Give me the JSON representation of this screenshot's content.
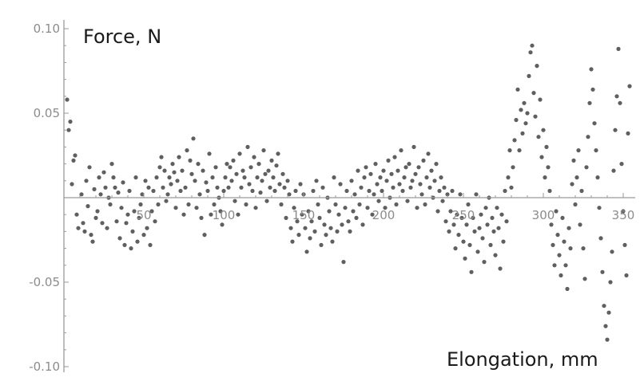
{
  "chart_data": {
    "type": "scatter",
    "title": "",
    "ylabel": "Force, N",
    "xlabel": "Elongation, mm",
    "xlim": [
      0,
      355
    ],
    "ylim": [
      -0.1,
      0.1
    ],
    "xticks": [
      50,
      100,
      150,
      200,
      250,
      300,
      350
    ],
    "xtick_labels": [
      "50",
      "100",
      "150",
      "200",
      "250",
      "300",
      "350"
    ],
    "yticks": [
      -0.1,
      -0.05,
      0.05,
      0.1
    ],
    "ytick_labels": [
      "-0.10",
      "-0.05",
      "0.05",
      "0.10"
    ],
    "grid": false,
    "point_color": "#5f5f5f",
    "points": [
      [
        2,
        0.058
      ],
      [
        3,
        0.04
      ],
      [
        4,
        0.045
      ],
      [
        5,
        0.008
      ],
      [
        6,
        0.022
      ],
      [
        7,
        0.025
      ],
      [
        8,
        -0.01
      ],
      [
        9,
        -0.018
      ],
      [
        11,
        0.002
      ],
      [
        12,
        -0.015
      ],
      [
        13,
        -0.02
      ],
      [
        14,
        0.01
      ],
      [
        15,
        -0.005
      ],
      [
        16,
        0.018
      ],
      [
        17,
        -0.022
      ],
      [
        18,
        -0.026
      ],
      [
        19,
        0.005
      ],
      [
        20,
        -0.012
      ],
      [
        21,
        -0.008
      ],
      [
        22,
        0.012
      ],
      [
        23,
        0.002
      ],
      [
        24,
        -0.015
      ],
      [
        25,
        0.015
      ],
      [
        26,
        0.006
      ],
      [
        27,
        -0.018
      ],
      [
        28,
        0.0
      ],
      [
        29,
        -0.004
      ],
      [
        30,
        0.02
      ],
      [
        31,
        0.012
      ],
      [
        32,
        0.006
      ],
      [
        33,
        -0.014
      ],
      [
        34,
        0.003
      ],
      [
        35,
        -0.024
      ],
      [
        36,
        -0.006
      ],
      [
        37,
        0.009
      ],
      [
        38,
        -0.028
      ],
      [
        39,
        -0.015
      ],
      [
        40,
        -0.01
      ],
      [
        41,
        0.004
      ],
      [
        42,
        -0.03
      ],
      [
        43,
        -0.02
      ],
      [
        44,
        -0.008
      ],
      [
        45,
        0.012
      ],
      [
        46,
        -0.026
      ],
      [
        47,
        -0.012
      ],
      [
        48,
        -0.004
      ],
      [
        49,
        0.002
      ],
      [
        50,
        -0.022
      ],
      [
        51,
        0.01
      ],
      [
        52,
        -0.018
      ],
      [
        53,
        0.006
      ],
      [
        54,
        -0.028
      ],
      [
        55,
        -0.008
      ],
      [
        56,
        0.004
      ],
      [
        57,
        -0.014
      ],
      [
        58,
        0.012
      ],
      [
        59,
        -0.004
      ],
      [
        60,
        0.018
      ],
      [
        61,
        0.024
      ],
      [
        62,
        0.006
      ],
      [
        63,
        0.016
      ],
      [
        64,
        -0.002
      ],
      [
        65,
        0.002
      ],
      [
        66,
        0.012
      ],
      [
        67,
        0.008
      ],
      [
        68,
        0.02
      ],
      [
        69,
        0.015
      ],
      [
        70,
        -0.006
      ],
      [
        71,
        0.01
      ],
      [
        72,
        0.024
      ],
      [
        73,
        0.004
      ],
      [
        74,
        0.016
      ],
      [
        75,
        -0.01
      ],
      [
        76,
        0.006
      ],
      [
        77,
        0.028
      ],
      [
        78,
        -0.004
      ],
      [
        79,
        0.022
      ],
      [
        80,
        0.014
      ],
      [
        81,
        0.035
      ],
      [
        82,
        0.01
      ],
      [
        83,
        -0.006
      ],
      [
        84,
        0.02
      ],
      [
        85,
        0.002
      ],
      [
        86,
        -0.012
      ],
      [
        87,
        0.016
      ],
      [
        88,
        -0.022
      ],
      [
        89,
        0.009
      ],
      [
        90,
        0.004
      ],
      [
        91,
        0.026
      ],
      [
        92,
        -0.01
      ],
      [
        93,
        0.012
      ],
      [
        94,
        -0.004
      ],
      [
        95,
        0.018
      ],
      [
        96,
        0.006
      ],
      [
        97,
        0.0
      ],
      [
        98,
        -0.008
      ],
      [
        99,
        -0.016
      ],
      [
        100,
        0.004
      ],
      [
        101,
        0.012
      ],
      [
        102,
        0.02
      ],
      [
        103,
        0.006
      ],
      [
        104,
        0.018
      ],
      [
        105,
        0.01
      ],
      [
        106,
        0.022
      ],
      [
        107,
        -0.002
      ],
      [
        108,
        0.014
      ],
      [
        109,
        -0.01
      ],
      [
        110,
        0.026
      ],
      [
        111,
        0.006
      ],
      [
        112,
        0.016
      ],
      [
        113,
        0.012
      ],
      [
        114,
        -0.004
      ],
      [
        115,
        0.03
      ],
      [
        116,
        0.008
      ],
      [
        117,
        0.018
      ],
      [
        118,
        0.004
      ],
      [
        119,
        0.024
      ],
      [
        120,
        -0.006
      ],
      [
        121,
        0.012
      ],
      [
        122,
        0.02
      ],
      [
        123,
        0.003
      ],
      [
        124,
        0.01
      ],
      [
        125,
        0.028
      ],
      [
        126,
        0.014
      ],
      [
        127,
        -0.002
      ],
      [
        128,
        0.016
      ],
      [
        129,
        0.006
      ],
      [
        130,
        0.022
      ],
      [
        131,
        0.012
      ],
      [
        132,
        0.004
      ],
      [
        133,
        0.019
      ],
      [
        134,
        0.026
      ],
      [
        135,
        0.008
      ],
      [
        136,
        -0.004
      ],
      [
        137,
        0.014
      ],
      [
        138,
        0.006
      ],
      [
        139,
        -0.012
      ],
      [
        140,
        0.01
      ],
      [
        141,
        0.002
      ],
      [
        142,
        -0.018
      ],
      [
        143,
        -0.026
      ],
      [
        144,
        -0.006
      ],
      [
        145,
        0.004
      ],
      [
        146,
        -0.014
      ],
      [
        147,
        -0.022
      ],
      [
        148,
        0.008
      ],
      [
        149,
        -0.01
      ],
      [
        150,
        0.002
      ],
      [
        151,
        -0.018
      ],
      [
        152,
        -0.032
      ],
      [
        153,
        -0.008
      ],
      [
        154,
        -0.024
      ],
      [
        155,
        -0.014
      ],
      [
        156,
        0.004
      ],
      [
        157,
        -0.02
      ],
      [
        158,
        0.01
      ],
      [
        159,
        -0.004
      ],
      [
        160,
        -0.012
      ],
      [
        161,
        -0.028
      ],
      [
        162,
        0.006
      ],
      [
        163,
        -0.016
      ],
      [
        164,
        -0.022
      ],
      [
        165,
        0.0
      ],
      [
        166,
        -0.008
      ],
      [
        167,
        -0.018
      ],
      [
        168,
        -0.026
      ],
      [
        169,
        0.012
      ],
      [
        170,
        -0.004
      ],
      [
        171,
        -0.02
      ],
      [
        172,
        -0.01
      ],
      [
        173,
        0.008
      ],
      [
        174,
        -0.016
      ],
      [
        175,
        -0.038
      ],
      [
        176,
        -0.006
      ],
      [
        177,
        0.004
      ],
      [
        178,
        -0.014
      ],
      [
        179,
        -0.02
      ],
      [
        180,
        0.01
      ],
      [
        181,
        -0.008
      ],
      [
        182,
        0.002
      ],
      [
        183,
        -0.012
      ],
      [
        184,
        0.016
      ],
      [
        185,
        -0.004
      ],
      [
        186,
        0.006
      ],
      [
        187,
        -0.016
      ],
      [
        188,
        0.012
      ],
      [
        189,
        0.018
      ],
      [
        190,
        -0.006
      ],
      [
        191,
        0.004
      ],
      [
        192,
        0.014
      ],
      [
        193,
        -0.01
      ],
      [
        194,
        0.002
      ],
      [
        195,
        0.02
      ],
      [
        196,
        0.008
      ],
      [
        197,
        -0.002
      ],
      [
        198,
        0.012
      ],
      [
        199,
        0.004
      ],
      [
        200,
        0.016
      ],
      [
        201,
        -0.006
      ],
      [
        202,
        0.01
      ],
      [
        203,
        0.022
      ],
      [
        204,
        0.0
      ],
      [
        205,
        0.014
      ],
      [
        206,
        0.006
      ],
      [
        207,
        0.024
      ],
      [
        208,
        -0.004
      ],
      [
        209,
        0.016
      ],
      [
        210,
        0.008
      ],
      [
        211,
        0.028
      ],
      [
        212,
        0.004
      ],
      [
        213,
        0.012
      ],
      [
        214,
        0.018
      ],
      [
        215,
        -0.002
      ],
      [
        216,
        0.02
      ],
      [
        217,
        0.006
      ],
      [
        218,
        0.01
      ],
      [
        219,
        0.03
      ],
      [
        220,
        0.014
      ],
      [
        221,
        -0.006
      ],
      [
        222,
        0.018
      ],
      [
        223,
        0.008
      ],
      [
        224,
        0.002
      ],
      [
        225,
        0.022
      ],
      [
        226,
        -0.004
      ],
      [
        227,
        0.012
      ],
      [
        228,
        0.026
      ],
      [
        229,
        0.006
      ],
      [
        230,
        0.016
      ],
      [
        231,
        0.0
      ],
      [
        232,
        0.01
      ],
      [
        233,
        0.02
      ],
      [
        234,
        -0.008
      ],
      [
        235,
        0.004
      ],
      [
        236,
        0.012
      ],
      [
        237,
        -0.002
      ],
      [
        238,
        0.006
      ],
      [
        239,
        -0.014
      ],
      [
        240,
        0.002
      ],
      [
        241,
        -0.02
      ],
      [
        242,
        -0.008
      ],
      [
        243,
        0.004
      ],
      [
        244,
        -0.016
      ],
      [
        245,
        -0.03
      ],
      [
        246,
        -0.01
      ],
      [
        247,
        -0.022
      ],
      [
        248,
        0.002
      ],
      [
        249,
        -0.012
      ],
      [
        250,
        -0.026
      ],
      [
        251,
        -0.036
      ],
      [
        252,
        -0.016
      ],
      [
        253,
        -0.004
      ],
      [
        254,
        -0.028
      ],
      [
        255,
        -0.044
      ],
      [
        256,
        -0.012
      ],
      [
        257,
        -0.02
      ],
      [
        258,
        0.002
      ],
      [
        259,
        -0.032
      ],
      [
        260,
        -0.018
      ],
      [
        261,
        -0.01
      ],
      [
        262,
        -0.024
      ],
      [
        263,
        -0.038
      ],
      [
        264,
        -0.006
      ],
      [
        265,
        -0.016
      ],
      [
        266,
        0.0
      ],
      [
        267,
        -0.028
      ],
      [
        268,
        -0.012
      ],
      [
        269,
        -0.02
      ],
      [
        270,
        -0.034
      ],
      [
        271,
        -0.006
      ],
      [
        272,
        -0.018
      ],
      [
        273,
        -0.042
      ],
      [
        274,
        -0.01
      ],
      [
        275,
        -0.026
      ],
      [
        276,
        0.004
      ],
      [
        277,
        -0.014
      ],
      [
        278,
        0.012
      ],
      [
        279,
        0.028
      ],
      [
        280,
        0.006
      ],
      [
        281,
        0.018
      ],
      [
        282,
        0.034
      ],
      [
        283,
        0.046
      ],
      [
        284,
        0.064
      ],
      [
        285,
        0.028
      ],
      [
        286,
        0.052
      ],
      [
        287,
        0.038
      ],
      [
        288,
        0.056
      ],
      [
        289,
        0.044
      ],
      [
        290,
        0.05
      ],
      [
        291,
        0.072
      ],
      [
        292,
        0.086
      ],
      [
        293,
        0.09
      ],
      [
        294,
        0.062
      ],
      [
        295,
        0.048
      ],
      [
        296,
        0.078
      ],
      [
        297,
        0.036
      ],
      [
        298,
        0.058
      ],
      [
        299,
        0.024
      ],
      [
        300,
        0.04
      ],
      [
        301,
        0.012
      ],
      [
        302,
        0.03
      ],
      [
        303,
        0.018
      ],
      [
        304,
        0.004
      ],
      [
        305,
        -0.016
      ],
      [
        306,
        -0.028
      ],
      [
        307,
        -0.04
      ],
      [
        308,
        -0.008
      ],
      [
        309,
        -0.022
      ],
      [
        310,
        -0.034
      ],
      [
        311,
        -0.046
      ],
      [
        312,
        -0.012
      ],
      [
        313,
        -0.026
      ],
      [
        314,
        -0.04
      ],
      [
        315,
        -0.054
      ],
      [
        316,
        -0.018
      ],
      [
        317,
        -0.03
      ],
      [
        318,
        0.008
      ],
      [
        319,
        0.022
      ],
      [
        320,
        -0.004
      ],
      [
        321,
        0.012
      ],
      [
        322,
        0.028
      ],
      [
        323,
        -0.016
      ],
      [
        324,
        0.004
      ],
      [
        325,
        -0.03
      ],
      [
        326,
        -0.048
      ],
      [
        327,
        0.018
      ],
      [
        328,
        0.036
      ],
      [
        329,
        0.056
      ],
      [
        330,
        0.076
      ],
      [
        331,
        0.064
      ],
      [
        332,
        0.044
      ],
      [
        333,
        0.028
      ],
      [
        334,
        0.012
      ],
      [
        335,
        -0.006
      ],
      [
        336,
        -0.024
      ],
      [
        337,
        -0.044
      ],
      [
        338,
        -0.064
      ],
      [
        339,
        -0.076
      ],
      [
        340,
        -0.084
      ],
      [
        341,
        -0.068
      ],
      [
        342,
        -0.05
      ],
      [
        343,
        -0.032
      ],
      [
        344,
        0.016
      ],
      [
        345,
        0.04
      ],
      [
        346,
        0.06
      ],
      [
        347,
        0.088
      ],
      [
        348,
        0.056
      ],
      [
        349,
        0.02
      ],
      [
        350,
        -0.008
      ],
      [
        351,
        -0.028
      ],
      [
        352,
        -0.046
      ],
      [
        353,
        0.038
      ],
      [
        354,
        0.066
      ]
    ]
  }
}
